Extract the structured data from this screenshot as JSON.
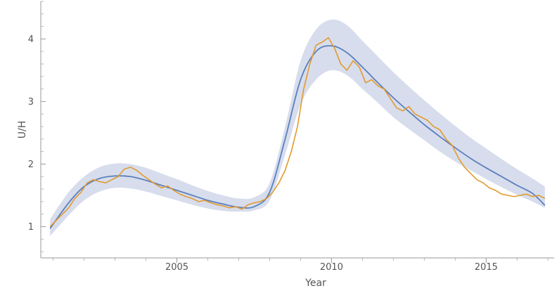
{
  "chart_data": {
    "type": "line",
    "title": "",
    "xlabel": "Year",
    "ylabel": "U/H",
    "xlim": [
      2000.6,
      2017.2
    ],
    "ylim": [
      0.5,
      4.6
    ],
    "x_ticks": [
      {
        "value": 2005,
        "label": "2005"
      },
      {
        "value": 2010,
        "label": "2010"
      },
      {
        "value": 2015,
        "label": "2015"
      }
    ],
    "y_ticks": [
      {
        "value": 1,
        "label": "1"
      },
      {
        "value": 2,
        "label": "2"
      },
      {
        "value": 3,
        "label": "3"
      },
      {
        "value": 4,
        "label": "4"
      }
    ],
    "grid": false,
    "legend": "none",
    "colors": {
      "observed": "#E29A2E",
      "fitted": "#5B7FBF",
      "band": "#D7DDEC",
      "axis": "#999999"
    },
    "series": [
      {
        "kind": "fitted-band",
        "x": [
          2000.9,
          2001.5,
          2002.0,
          2002.5,
          2003.0,
          2003.5,
          2004.0,
          2004.5,
          2005.0,
          2005.5,
          2006.0,
          2006.5,
          2007.0,
          2007.5,
          2008.0,
          2008.5,
          2009.0,
          2009.5,
          2010.0,
          2010.5,
          2011.0,
          2011.5,
          2012.0,
          2012.5,
          2013.0,
          2013.5,
          2014.0,
          2014.5,
          2015.0,
          2015.5,
          2016.0,
          2016.5,
          2016.9
        ],
        "lower": [
          0.85,
          1.18,
          1.42,
          1.56,
          1.62,
          1.61,
          1.56,
          1.49,
          1.42,
          1.35,
          1.29,
          1.25,
          1.24,
          1.26,
          1.42,
          2.15,
          2.95,
          3.35,
          3.5,
          3.42,
          3.2,
          2.98,
          2.75,
          2.56,
          2.38,
          2.2,
          2.04,
          1.9,
          1.76,
          1.63,
          1.51,
          1.4,
          1.3
        ],
        "upper": [
          1.12,
          1.55,
          1.8,
          1.95,
          2.01,
          2.0,
          1.94,
          1.85,
          1.76,
          1.66,
          1.57,
          1.5,
          1.45,
          1.47,
          1.7,
          2.6,
          3.65,
          4.15,
          4.31,
          4.22,
          3.97,
          3.72,
          3.47,
          3.24,
          3.02,
          2.81,
          2.61,
          2.42,
          2.25,
          2.08,
          1.92,
          1.77,
          1.64
        ]
      },
      {
        "kind": "fitted-line",
        "x": [
          2000.9,
          2001.5,
          2002.0,
          2002.5,
          2003.0,
          2003.5,
          2004.0,
          2004.5,
          2005.0,
          2005.5,
          2006.0,
          2006.5,
          2007.0,
          2007.5,
          2008.0,
          2008.5,
          2009.0,
          2009.5,
          2010.0,
          2010.5,
          2011.0,
          2011.5,
          2012.0,
          2012.5,
          2013.0,
          2013.5,
          2014.0,
          2014.5,
          2015.0,
          2015.5,
          2016.0,
          2016.5,
          2016.9
        ],
        "y": [
          0.97,
          1.38,
          1.64,
          1.77,
          1.81,
          1.8,
          1.74,
          1.66,
          1.58,
          1.5,
          1.42,
          1.36,
          1.31,
          1.32,
          1.55,
          2.4,
          3.35,
          3.8,
          3.89,
          3.78,
          3.55,
          3.3,
          3.06,
          2.84,
          2.63,
          2.44,
          2.26,
          2.09,
          1.94,
          1.8,
          1.66,
          1.53,
          1.34
        ]
      },
      {
        "kind": "observed-line",
        "x": [
          2000.9,
          2001.1,
          2001.3,
          2001.5,
          2001.7,
          2001.9,
          2002.1,
          2002.3,
          2002.5,
          2002.7,
          2002.9,
          2003.1,
          2003.3,
          2003.5,
          2003.7,
          2003.9,
          2004.1,
          2004.3,
          2004.5,
          2004.7,
          2004.9,
          2005.1,
          2005.3,
          2005.5,
          2005.7,
          2005.9,
          2006.1,
          2006.3,
          2006.5,
          2006.7,
          2006.9,
          2007.1,
          2007.3,
          2007.5,
          2007.7,
          2007.9,
          2008.1,
          2008.3,
          2008.5,
          2008.7,
          2008.9,
          2009.1,
          2009.3,
          2009.5,
          2009.7,
          2009.9,
          2010.1,
          2010.3,
          2010.5,
          2010.7,
          2010.9,
          2011.1,
          2011.3,
          2011.5,
          2011.7,
          2011.9,
          2012.1,
          2012.3,
          2012.5,
          2012.7,
          2012.9,
          2013.1,
          2013.3,
          2013.5,
          2013.7,
          2013.9,
          2014.1,
          2014.3,
          2014.5,
          2014.7,
          2014.9,
          2015.1,
          2015.3,
          2015.5,
          2015.7,
          2015.9,
          2016.1,
          2016.3,
          2016.5,
          2016.7,
          2016.9
        ],
        "y": [
          1.0,
          1.1,
          1.2,
          1.3,
          1.45,
          1.55,
          1.7,
          1.75,
          1.72,
          1.7,
          1.75,
          1.8,
          1.92,
          1.95,
          1.9,
          1.82,
          1.75,
          1.68,
          1.62,
          1.65,
          1.58,
          1.52,
          1.48,
          1.45,
          1.4,
          1.42,
          1.38,
          1.35,
          1.33,
          1.3,
          1.32,
          1.28,
          1.35,
          1.38,
          1.4,
          1.45,
          1.55,
          1.7,
          1.9,
          2.2,
          2.6,
          3.2,
          3.6,
          3.9,
          3.95,
          4.02,
          3.85,
          3.6,
          3.5,
          3.65,
          3.55,
          3.3,
          3.35,
          3.25,
          3.2,
          3.05,
          2.9,
          2.85,
          2.92,
          2.8,
          2.75,
          2.7,
          2.6,
          2.55,
          2.4,
          2.3,
          2.1,
          1.95,
          1.85,
          1.75,
          1.7,
          1.62,
          1.58,
          1.52,
          1.5,
          1.48,
          1.5,
          1.52,
          1.48,
          1.5,
          1.45
        ]
      }
    ]
  }
}
